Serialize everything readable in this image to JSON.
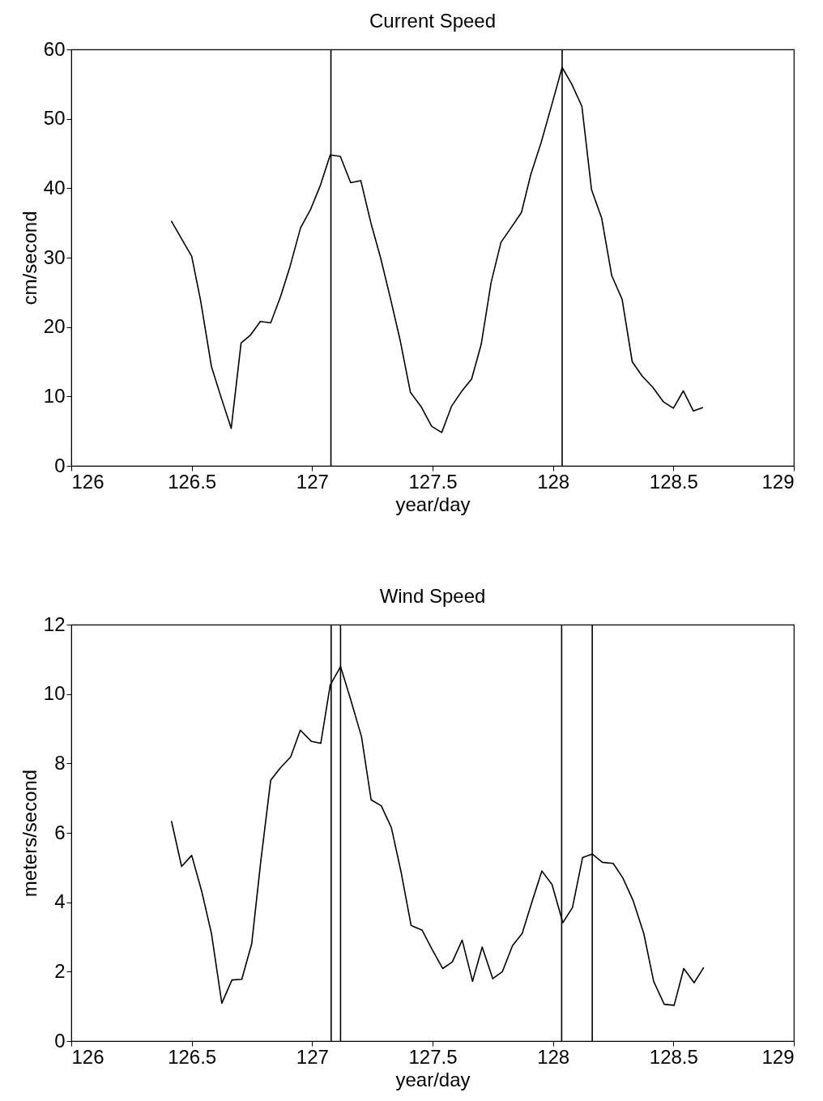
{
  "chart_data": [
    {
      "type": "line",
      "title": "Current Speed",
      "xlabel": "year/day",
      "ylabel": "cm/second",
      "xlim": [
        126,
        129
      ],
      "xticks": [
        126,
        126.5,
        127,
        127.5,
        128,
        128.5,
        129
      ],
      "ylim": [
        0,
        60
      ],
      "yticks": [
        0,
        10,
        20,
        30,
        40,
        50,
        60
      ],
      "grid": false,
      "x": [
        126.415,
        126.5,
        126.537,
        126.582,
        126.619,
        126.664,
        126.705,
        126.743,
        126.785,
        126.828,
        126.869,
        126.908,
        126.952,
        126.993,
        127.034,
        127.075,
        127.117,
        127.16,
        127.202,
        127.244,
        127.284,
        127.324,
        127.366,
        127.408,
        127.453,
        127.496,
        127.538,
        127.579,
        127.62,
        127.662,
        127.702,
        127.743,
        127.784,
        127.826,
        127.869,
        127.908,
        127.951,
        127.994,
        128.038,
        128.078,
        128.12,
        128.16,
        128.202,
        128.244,
        128.287,
        128.329,
        128.371,
        128.415,
        128.459,
        128.5,
        128.541,
        128.583,
        128.623
      ],
      "series": [
        {
          "color": "#000000",
          "values": [
            35.3,
            30.2,
            23.8,
            14.3,
            10.2,
            5.4,
            17.7,
            18.8,
            20.8,
            20.6,
            24.4,
            28.7,
            34.3,
            36.9,
            40.4,
            44.8,
            44.6,
            40.8,
            41.1,
            35.0,
            30.0,
            24.3,
            18.0,
            10.6,
            8.5,
            5.7,
            4.8,
            8.6,
            10.7,
            12.5,
            17.5,
            26.4,
            32.2,
            34.3,
            36.5,
            42.0,
            46.6,
            51.9,
            57.4,
            55.0,
            51.8,
            39.8,
            35.7,
            27.4,
            24.0,
            15.0,
            12.9,
            11.3,
            9.2,
            8.3,
            10.8,
            7.9,
            8.4
          ]
        }
      ],
      "ref_lines": [
        {
          "axis": "x",
          "value": 127.078,
          "color": "#000000"
        },
        {
          "axis": "x",
          "value": 128.038,
          "color": "#000000"
        }
      ]
    },
    {
      "type": "line",
      "title": "Wind Speed",
      "xlabel": "year/day",
      "ylabel": "meters/second",
      "xlim": [
        126,
        129
      ],
      "xticks": [
        126,
        126.5,
        127,
        127.5,
        128,
        128.5,
        129
      ],
      "ylim": [
        0,
        12
      ],
      "yticks": [
        0,
        2,
        4,
        6,
        8,
        10,
        12
      ],
      "grid": false,
      "x": [
        126.416,
        126.458,
        126.5,
        126.542,
        126.582,
        126.625,
        126.667,
        126.708,
        126.749,
        126.787,
        126.828,
        126.869,
        126.911,
        126.951,
        126.996,
        127.036,
        127.075,
        127.118,
        127.16,
        127.205,
        127.245,
        127.287,
        127.329,
        127.369,
        127.411,
        127.456,
        127.499,
        127.542,
        127.582,
        127.623,
        127.666,
        127.706,
        127.75,
        127.79,
        127.832,
        127.872,
        127.914,
        127.954,
        127.996,
        128.041,
        128.081,
        128.123,
        128.163,
        128.205,
        128.25,
        128.29,
        128.332,
        128.377,
        128.418,
        128.462,
        128.503,
        128.543,
        128.586,
        128.626
      ],
      "series": [
        {
          "color": "#000000",
          "values": [
            6.34,
            5.03,
            5.35,
            4.3,
            3.1,
            1.09,
            1.76,
            1.78,
            2.8,
            5.19,
            7.52,
            7.88,
            8.19,
            8.96,
            8.64,
            8.58,
            10.26,
            10.79,
            9.84,
            8.77,
            6.95,
            6.78,
            6.15,
            4.88,
            3.33,
            3.2,
            2.63,
            2.09,
            2.28,
            2.91,
            1.72,
            2.71,
            1.8,
            2.0,
            2.75,
            3.1,
            4.04,
            4.9,
            4.51,
            3.41,
            3.85,
            5.29,
            5.39,
            5.15,
            5.12,
            4.7,
            4.06,
            3.1,
            1.72,
            1.06,
            1.03,
            2.09,
            1.68,
            2.12
          ]
        }
      ],
      "ref_lines": [
        {
          "axis": "x",
          "value": 127.079,
          "color": "#000000"
        },
        {
          "axis": "x",
          "value": 127.118,
          "color": "#000000"
        },
        {
          "axis": "x",
          "value": 128.036,
          "color": "#000000"
        },
        {
          "axis": "x",
          "value": 128.163,
          "color": "#000000"
        }
      ]
    }
  ]
}
